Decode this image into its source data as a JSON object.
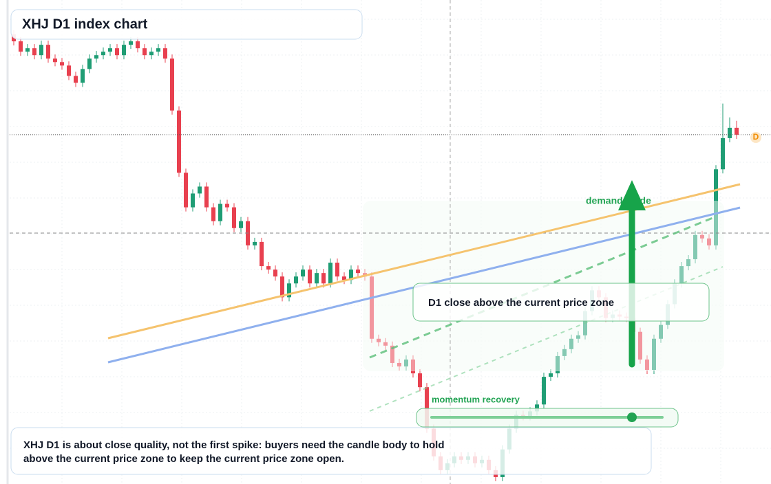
{
  "chart_data": {
    "type": "candlestick",
    "title": "XHJ D1 index chart",
    "up_color": "#1f9d74",
    "down_color": "#e8404f",
    "open": [
      1150,
      1140,
      1125,
      1130,
      1120,
      1135,
      1115,
      1110,
      1105,
      1090,
      1080,
      1100,
      1115,
      1120,
      1125,
      1130,
      1120,
      1135,
      1140,
      1130,
      1120,
      1125,
      1130,
      1115,
      1040,
      950,
      900,
      920,
      930,
      900,
      880,
      905,
      900,
      870,
      880,
      845,
      850,
      815,
      810,
      800,
      770,
      790,
      800,
      810,
      790,
      805,
      790,
      820,
      800,
      795,
      810,
      805,
      800,
      710,
      705,
      700,
      675,
      670,
      680,
      660,
      640,
      580,
      540,
      520,
      530,
      540,
      535,
      540,
      530,
      535,
      520,
      510,
      550,
      580,
      600,
      598,
      605,
      615,
      655,
      660,
      685,
      695,
      710,
      715,
      750,
      780,
      770,
      740,
      745,
      742,
      740,
      720,
      680,
      665,
      710,
      730,
      760,
      790,
      815,
      825,
      860,
      855,
      845,
      955,
      1000,
      1015
    ],
    "high": [
      1156,
      1146,
      1136,
      1136,
      1141,
      1141,
      1121,
      1116,
      1111,
      1096,
      1106,
      1121,
      1126,
      1131,
      1136,
      1136,
      1141,
      1146,
      1146,
      1136,
      1131,
      1136,
      1136,
      1121,
      1046,
      956,
      926,
      936,
      936,
      906,
      911,
      911,
      906,
      886,
      886,
      856,
      856,
      821,
      816,
      806,
      796,
      806,
      816,
      816,
      811,
      811,
      826,
      826,
      806,
      816,
      816,
      811,
      806,
      716,
      711,
      706,
      681,
      686,
      686,
      666,
      646,
      586,
      546,
      536,
      546,
      546,
      546,
      546,
      541,
      541,
      526,
      556,
      586,
      606,
      606,
      611,
      621,
      661,
      666,
      691,
      701,
      716,
      721,
      756,
      786,
      786,
      776,
      751,
      751,
      748,
      746,
      726,
      686,
      716,
      736,
      766,
      796,
      821,
      831,
      866,
      866,
      861,
      961,
      1050,
      1030,
      1025
    ],
    "low": [
      1134,
      1119,
      1119,
      1114,
      1114,
      1109,
      1104,
      1099,
      1084,
      1074,
      1074,
      1094,
      1109,
      1114,
      1119,
      1114,
      1114,
      1129,
      1124,
      1114,
      1114,
      1119,
      1109,
      1034,
      944,
      894,
      894,
      914,
      894,
      874,
      874,
      894,
      864,
      864,
      839,
      839,
      809,
      804,
      794,
      764,
      764,
      784,
      794,
      784,
      784,
      784,
      784,
      794,
      789,
      789,
      799,
      794,
      704,
      699,
      694,
      669,
      664,
      664,
      654,
      634,
      574,
      534,
      514,
      514,
      524,
      529,
      529,
      524,
      524,
      514,
      504,
      504,
      544,
      574,
      592,
      592,
      599,
      609,
      649,
      654,
      679,
      689,
      704,
      709,
      744,
      764,
      734,
      734,
      736,
      734,
      714,
      674,
      659,
      659,
      704,
      724,
      754,
      784,
      809,
      819,
      849,
      839,
      839,
      949,
      994,
      999
    ],
    "close": [
      1140,
      1125,
      1130,
      1120,
      1135,
      1115,
      1110,
      1105,
      1090,
      1080,
      1100,
      1115,
      1120,
      1125,
      1130,
      1120,
      1135,
      1140,
      1130,
      1120,
      1125,
      1130,
      1115,
      1040,
      950,
      900,
      920,
      930,
      900,
      880,
      905,
      900,
      870,
      880,
      845,
      850,
      815,
      810,
      800,
      770,
      790,
      800,
      810,
      790,
      805,
      790,
      820,
      800,
      795,
      810,
      805,
      800,
      710,
      705,
      700,
      675,
      670,
      680,
      660,
      640,
      580,
      540,
      520,
      530,
      540,
      535,
      540,
      530,
      535,
      520,
      510,
      550,
      580,
      600,
      598,
      605,
      615,
      655,
      660,
      685,
      695,
      710,
      715,
      750,
      780,
      770,
      740,
      745,
      742,
      740,
      720,
      680,
      665,
      710,
      730,
      760,
      790,
      815,
      825,
      860,
      855,
      845,
      955,
      1000,
      1015,
      1005
    ],
    "last_marker": "D",
    "annotations": {
      "zone_label": "demand guide",
      "close_box": "D1 close above the current price zone",
      "momentum_label": "momentum recovery",
      "note": [
        "XHJ D1 is about close quality, not the first spike: buyers need the candle body to hold",
        "above the current price zone to keep the current price zone open."
      ]
    }
  }
}
